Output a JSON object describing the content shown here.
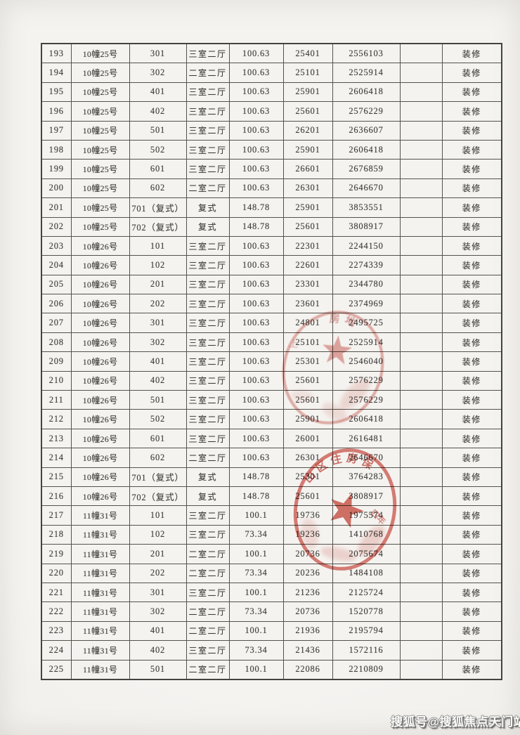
{
  "page": {
    "watermark": "搜狐号@搜狐焦点天门站"
  },
  "table": {
    "col_names": [
      "seq",
      "building",
      "room",
      "layout",
      "area",
      "unit-price",
      "total-price",
      "blank",
      "decoration"
    ],
    "rows": [
      [
        "193",
        "10幢25号",
        "301",
        "三室二厅",
        "100.63",
        "25401",
        "2556103",
        "",
        "装修"
      ],
      [
        "194",
        "10幢25号",
        "302",
        "二室二厅",
        "100.63",
        "25101",
        "2525914",
        "",
        "装修"
      ],
      [
        "195",
        "10幢25号",
        "401",
        "三室二厅",
        "100.63",
        "25901",
        "2606418",
        "",
        "装修"
      ],
      [
        "196",
        "10幢25号",
        "402",
        "三室二厅",
        "100.63",
        "25601",
        "2576229",
        "",
        "装修"
      ],
      [
        "197",
        "10幢25号",
        "501",
        "三室二厅",
        "100.63",
        "26201",
        "2636607",
        "",
        "装修"
      ],
      [
        "198",
        "10幢25号",
        "502",
        "三室二厅",
        "100.63",
        "25901",
        "2606418",
        "",
        "装修"
      ],
      [
        "199",
        "10幢25号",
        "601",
        "三室二厅",
        "100.63",
        "26601",
        "2676859",
        "",
        "装修"
      ],
      [
        "200",
        "10幢25号",
        "602",
        "二室二厅",
        "100.63",
        "26301",
        "2646670",
        "",
        "装修"
      ],
      [
        "201",
        "10幢25号",
        "701（复式）",
        "复式",
        "148.78",
        "25901",
        "3853551",
        "",
        "装修"
      ],
      [
        "202",
        "10幢25号",
        "702（复式）",
        "复式",
        "148.78",
        "25601",
        "3808917",
        "",
        "装修"
      ],
      [
        "203",
        "10幢26号",
        "101",
        "三室二厅",
        "100.63",
        "22301",
        "2244150",
        "",
        "装修"
      ],
      [
        "204",
        "10幢26号",
        "102",
        "三室二厅",
        "100.63",
        "22601",
        "2274339",
        "",
        "装修"
      ],
      [
        "205",
        "10幢26号",
        "201",
        "三室二厅",
        "100.63",
        "23301",
        "2344780",
        "",
        "装修"
      ],
      [
        "206",
        "10幢26号",
        "202",
        "三室二厅",
        "100.63",
        "23601",
        "2374969",
        "",
        "装修"
      ],
      [
        "207",
        "10幢26号",
        "301",
        "三室二厅",
        "100.63",
        "24801",
        "2495725",
        "",
        "装修"
      ],
      [
        "208",
        "10幢26号",
        "302",
        "三室二厅",
        "100.63",
        "25101",
        "2525914",
        "",
        "装修"
      ],
      [
        "209",
        "10幢26号",
        "401",
        "三室二厅",
        "100.63",
        "25301",
        "2546040",
        "",
        "装修"
      ],
      [
        "210",
        "10幢26号",
        "402",
        "三室二厅",
        "100.63",
        "25601",
        "2576229",
        "",
        "装修"
      ],
      [
        "211",
        "10幢26号",
        "501",
        "三室二厅",
        "100.63",
        "25601",
        "2576229",
        "",
        "装修"
      ],
      [
        "212",
        "10幢26号",
        "502",
        "三室二厅",
        "100.63",
        "25901",
        "2606418",
        "",
        "装修"
      ],
      [
        "213",
        "10幢26号",
        "601",
        "三室二厅",
        "100.63",
        "26001",
        "2616481",
        "",
        "装修"
      ],
      [
        "214",
        "10幢26号",
        "602",
        "二室二厅",
        "100.63",
        "26301",
        "2646670",
        "",
        "装修"
      ],
      [
        "215",
        "10幢26号",
        "701（复式）",
        "复式",
        "148.78",
        "25301",
        "3764283",
        "",
        "装修"
      ],
      [
        "216",
        "10幢26号",
        "702（复式）",
        "复式",
        "148.78",
        "25601",
        "3808917",
        "",
        "装修"
      ],
      [
        "217",
        "11幢31号",
        "101",
        "三室二厅",
        "100.1",
        "19736",
        "1975574",
        "",
        "装修"
      ],
      [
        "218",
        "11幢31号",
        "102",
        "三室二厅",
        "73.34",
        "19236",
        "1410768",
        "",
        "装修"
      ],
      [
        "219",
        "11幢31号",
        "201",
        "二室二厅",
        "100.1",
        "20736",
        "2075674",
        "",
        "装修"
      ],
      [
        "220",
        "11幢31号",
        "202",
        "二室二厅",
        "73.34",
        "20236",
        "1484108",
        "",
        "装修"
      ],
      [
        "221",
        "11幢31号",
        "301",
        "三室二厅",
        "100.1",
        "21236",
        "2125724",
        "",
        "装修"
      ],
      [
        "222",
        "11幢31号",
        "302",
        "二室二厅",
        "73.34",
        "20736",
        "1520778",
        "",
        "装修"
      ],
      [
        "223",
        "11幢31号",
        "401",
        "二室二厅",
        "100.1",
        "21936",
        "2195794",
        "",
        "装修"
      ],
      [
        "224",
        "11幢31号",
        "402",
        "三室二厅",
        "73.34",
        "21436",
        "1572116",
        "",
        "装修"
      ],
      [
        "225",
        "11幢31号",
        "501",
        "二室二厅",
        "100.1",
        "22086",
        "2210809",
        "",
        "装修"
      ]
    ]
  },
  "stamps": [
    {
      "name": "upper-seal",
      "arc_text": "房地",
      "side_text": "上",
      "color": "#bf392e"
    },
    {
      "name": "lower-seal",
      "arc_text": "山区住房保",
      "inner_text": "四年",
      "color": "#c6382b"
    }
  ]
}
